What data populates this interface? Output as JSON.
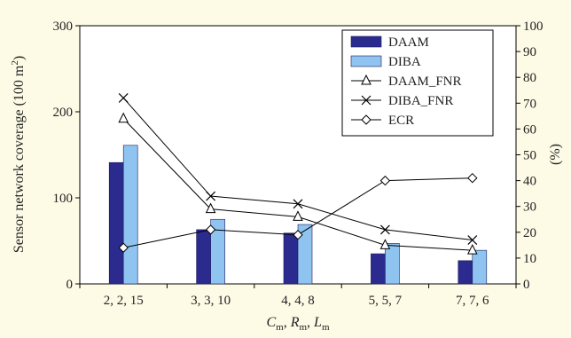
{
  "chart_data": {
    "type": "bar",
    "categories": [
      "2, 2, 15",
      "3, 3, 10",
      "4, 4, 8",
      "5, 5, 7",
      "7, 7, 6"
    ],
    "xlabel": {
      "parts": [
        [
          "C",
          "m"
        ],
        [
          "R",
          "m"
        ],
        [
          "L",
          "m"
        ]
      ],
      "separator": ", "
    },
    "ylabel_left": "Sensor network coverage (100 m²)",
    "ylabel_right": "(%)",
    "ylim_left": [
      0,
      300
    ],
    "yticks_left": [
      0,
      100,
      200,
      300
    ],
    "ylim_right": [
      0,
      100
    ],
    "yticks_right": [
      0,
      10,
      20,
      30,
      40,
      50,
      60,
      70,
      80,
      90,
      100
    ],
    "grid": false,
    "legend_position": "top-right",
    "series": [
      {
        "name": "DAAM",
        "kind": "bar",
        "axis": "left",
        "color": "#2b2b8f",
        "values": [
          141,
          63,
          59,
          35,
          27
        ]
      },
      {
        "name": "DIBA",
        "kind": "bar",
        "axis": "left",
        "color": "#8fc4f0",
        "values": [
          161,
          75,
          69,
          47,
          39
        ]
      },
      {
        "name": "DAAM_FNR",
        "kind": "line",
        "axis": "right",
        "marker": "triangle",
        "values": [
          64,
          29,
          26,
          15,
          13
        ]
      },
      {
        "name": "DIBA_FNR",
        "kind": "line",
        "axis": "right",
        "marker": "x",
        "values": [
          72,
          34,
          31,
          21,
          17
        ]
      },
      {
        "name": "ECR",
        "kind": "line",
        "axis": "right",
        "marker": "diamond",
        "values": [
          14,
          21,
          19,
          40,
          41
        ]
      }
    ]
  }
}
